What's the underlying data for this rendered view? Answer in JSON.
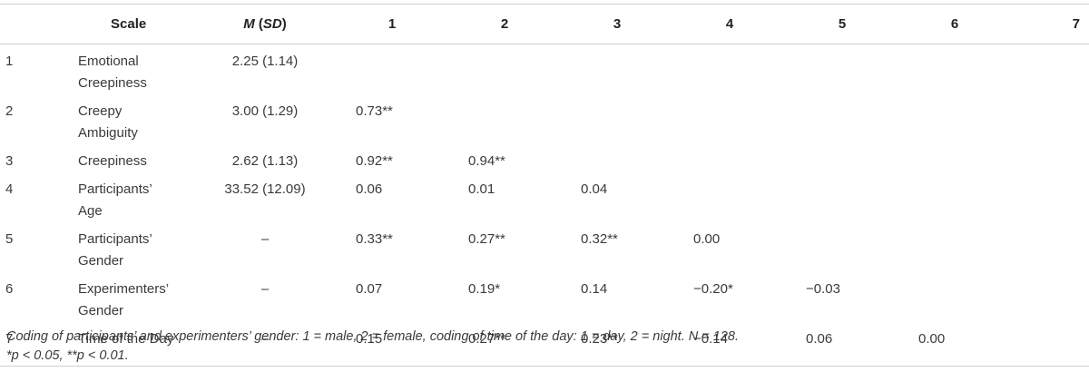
{
  "header": {
    "scale": "Scale",
    "m": "M",
    "sd_open": " (",
    "sd": "SD",
    "sd_close": ")",
    "cols": [
      "1",
      "2",
      "3",
      "4",
      "5",
      "6",
      "7"
    ]
  },
  "rows": [
    {
      "num": "1",
      "scale": [
        "Emotional",
        "Creepiness"
      ],
      "mean": "2.25 (1.14)",
      "vals": [
        "",
        "",
        "",
        "",
        "",
        ""
      ]
    },
    {
      "num": "2",
      "scale": [
        "Creepy",
        "Ambiguity"
      ],
      "mean": "3.00 (1.29)",
      "vals": [
        "0.73**",
        "",
        "",
        "",
        "",
        ""
      ]
    },
    {
      "num": "3",
      "scale": [
        "Creepiness",
        ""
      ],
      "mean": "2.62 (1.13)",
      "vals": [
        "0.92**",
        "0.94**",
        "",
        "",
        "",
        ""
      ]
    },
    {
      "num": "4",
      "scale": [
        "Participants’",
        "Age"
      ],
      "mean": "33.52 (12.09)",
      "vals": [
        "0.06",
        "0.01",
        "0.04",
        "",
        "",
        ""
      ]
    },
    {
      "num": "5",
      "scale": [
        "Participants’",
        "Gender"
      ],
      "mean": "–",
      "vals": [
        "0.33**",
        "0.27**",
        "0.32**",
        "0.00",
        "",
        ""
      ]
    },
    {
      "num": "6",
      "scale": [
        "Experimenters’",
        "Gender"
      ],
      "mean": "–",
      "vals": [
        "0.07",
        "0.19*",
        "0.14",
        "−0.20*",
        "−0.03",
        ""
      ]
    },
    {
      "num": "7",
      "scale": [
        "Time of the Day",
        ""
      ],
      "mean": "–",
      "vals": [
        "0.15",
        "0.27**",
        "0.23**",
        "−0.14",
        "0.06",
        "0.00"
      ]
    }
  ],
  "note": {
    "line1": "Coding of participants’ and experimenters’ gender: 1 = male, 2 = female, coding of time of the day: 1 = day, 2 = night. N = 128.",
    "line2": "*p < 0.05, **p < 0.01."
  }
}
